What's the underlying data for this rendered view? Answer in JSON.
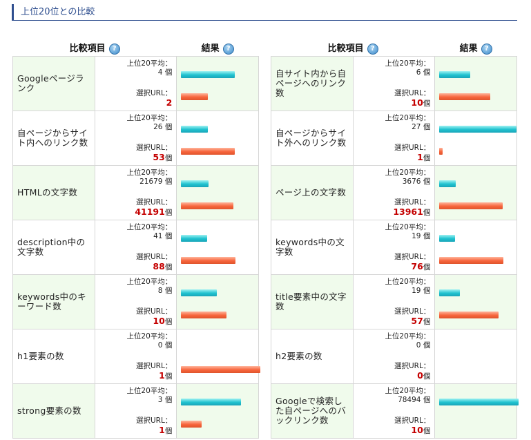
{
  "section_title": "上位20位との比較",
  "header": {
    "item": "比較項目",
    "result": "結果",
    "help_glyph": "?"
  },
  "labels": {
    "top_avg": "上位20平均：",
    "sel_url": "選択URL：",
    "unit": "個"
  },
  "colors": {
    "top_bar": "#1fc2cf",
    "url_bar": "#f7653c",
    "url_value": "#c40000",
    "row_green": "#f0fbec"
  },
  "left_rows": [
    {
      "item": "Googleページランク",
      "top": "4",
      "url": "2",
      "unit": "",
      "top_frac": 0.68,
      "url_frac": 0.34
    },
    {
      "item": "自ページからサイト内へのリンク数",
      "top": "26",
      "url": "53",
      "unit": "個",
      "top_frac": 0.34,
      "url_frac": 0.68
    },
    {
      "item": "HTMLの文字数",
      "top": "21679",
      "url": "41191",
      "unit": "個",
      "top_frac": 0.35,
      "url_frac": 0.66
    },
    {
      "item": "description中の文字数",
      "top": "41",
      "url": "88",
      "unit": "個",
      "top_frac": 0.33,
      "url_frac": 0.69
    },
    {
      "item": "keywords中のキーワード数",
      "top": "8",
      "url": "10",
      "unit": "個",
      "top_frac": 0.45,
      "url_frac": 0.57
    },
    {
      "item": "h1要素の数",
      "top": "0",
      "url": "1",
      "unit": "個",
      "top_frac": 0.0,
      "url_frac": 1.0
    },
    {
      "item": "strong要素の数",
      "top": "3",
      "url": "1",
      "unit": "個",
      "top_frac": 0.76,
      "url_frac": 0.26
    }
  ],
  "right_rows": [
    {
      "item": "自サイト内から自ページへのリンク数",
      "top": "6",
      "url": "10",
      "unit": "個",
      "top_frac": 0.39,
      "url_frac": 0.64
    },
    {
      "item": "自ページからサイト外へのリンク数",
      "top": "27",
      "url": "1",
      "unit": "個",
      "top_frac": 0.97,
      "url_frac": 0.04
    },
    {
      "item": "ページ上の文字数",
      "top": "3676",
      "url": "13961",
      "unit": "個",
      "top_frac": 0.21,
      "url_frac": 0.8
    },
    {
      "item": "keywords中の文字数",
      "top": "19",
      "url": "76",
      "unit": "個",
      "top_frac": 0.2,
      "url_frac": 0.81
    },
    {
      "item": "title要素中の文字数",
      "top": "19",
      "url": "57",
      "unit": "個",
      "top_frac": 0.26,
      "url_frac": 0.75
    },
    {
      "item": "h2要素の数",
      "top": "0",
      "url": "0",
      "unit": "個",
      "top_frac": 0.0,
      "url_frac": 0.0
    },
    {
      "item": "Googleで検索した自ページへのバックリンク数",
      "top": "78494",
      "url": "10",
      "unit": "個",
      "top_frac": 1.0,
      "url_frac": 0.0
    }
  ]
}
